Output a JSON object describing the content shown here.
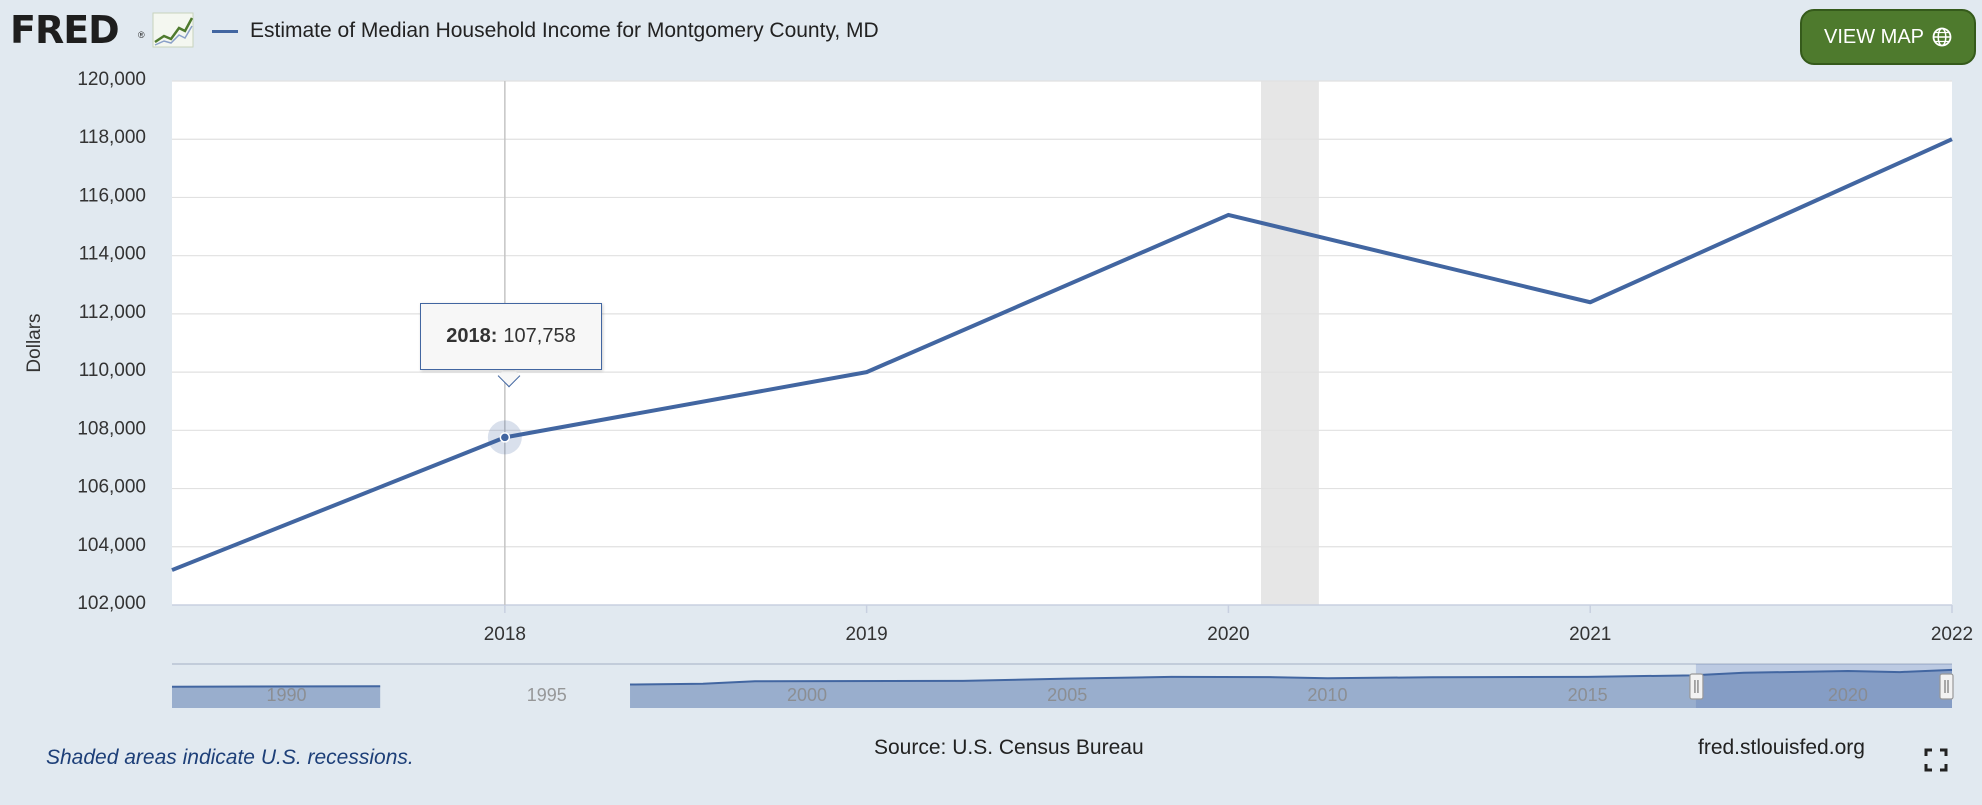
{
  "header": {
    "logo_text": "FRED",
    "logo_registered": "®",
    "title": "Estimate of Median Household Income for Montgomery County, MD",
    "view_map_label": "VIEW MAP"
  },
  "tooltip": {
    "year": "2018:",
    "value": "107,758"
  },
  "footer": {
    "recession_note": "Shaded areas indicate U.S. recessions.",
    "source": "Source: U.S. Census Bureau",
    "site": "fred.stlouisfed.org"
  },
  "colors": {
    "background": "#e1e9f0",
    "plot_background": "#ffffff",
    "series_line": "#4266a1",
    "recession_shade": "#e6e6e6",
    "button_green": "#4e7a2d",
    "note_text": "#1d3f78"
  },
  "icons": {
    "button_icon": "globe-icon",
    "corner_icon": "fullscreen-icon"
  },
  "chart_data": {
    "type": "line",
    "title": "Estimate of Median Household Income for Montgomery County, MD",
    "ylabel": "Dollars",
    "xlabel": "",
    "ylim": [
      102000,
      120000
    ],
    "xlim": [
      2017.08,
      2022
    ],
    "x_ticks": [
      "2018",
      "2019",
      "2020",
      "2021",
      "2022"
    ],
    "y_ticks": [
      "102,000",
      "104,000",
      "106,000",
      "108,000",
      "110,000",
      "112,000",
      "114,000",
      "116,000",
      "118,000",
      "120,000"
    ],
    "grid": "horizontal",
    "series": [
      {
        "points": [
          {
            "x": 2017.08,
            "y": 103200
          },
          {
            "x": 2018,
            "y": 107758
          },
          {
            "x": 2019,
            "y": 110000
          },
          {
            "x": 2020,
            "y": 115400
          },
          {
            "x": 2021,
            "y": 112400
          },
          {
            "x": 2022,
            "y": 118000
          }
        ]
      }
    ],
    "recessions": [
      {
        "start": 2020.09,
        "end": 2020.25
      }
    ],
    "highlight_point": {
      "x": 2018,
      "y": 107758
    },
    "navigator": {
      "x_ticks": [
        "1990",
        "1995",
        "2000",
        "2005",
        "2010",
        "2015",
        "2020"
      ],
      "xlim": [
        1987.8,
        2022
      ],
      "selection": [
        2017.08,
        2022
      ],
      "gaps": [
        [
          1991.8,
          1996.6
        ]
      ],
      "series": [
        {
          "x": 1987.8,
          "y": 29000
        },
        {
          "x": 1991.8,
          "y": 29600
        },
        {
          "x": 1996.6,
          "y": 32000
        },
        {
          "x": 1998,
          "y": 33000
        },
        {
          "x": 1999,
          "y": 36500
        },
        {
          "x": 2003,
          "y": 37000
        },
        {
          "x": 2005,
          "y": 40000
        },
        {
          "x": 2007,
          "y": 42500
        },
        {
          "x": 2009,
          "y": 42000
        },
        {
          "x": 2010,
          "y": 40500
        },
        {
          "x": 2012,
          "y": 42000
        },
        {
          "x": 2015,
          "y": 42500
        },
        {
          "x": 2017,
          "y": 44500
        },
        {
          "x": 2018,
          "y": 48000
        },
        {
          "x": 2020,
          "y": 50500
        },
        {
          "x": 2021,
          "y": 49000
        },
        {
          "x": 2022,
          "y": 52000
        }
      ]
    }
  }
}
